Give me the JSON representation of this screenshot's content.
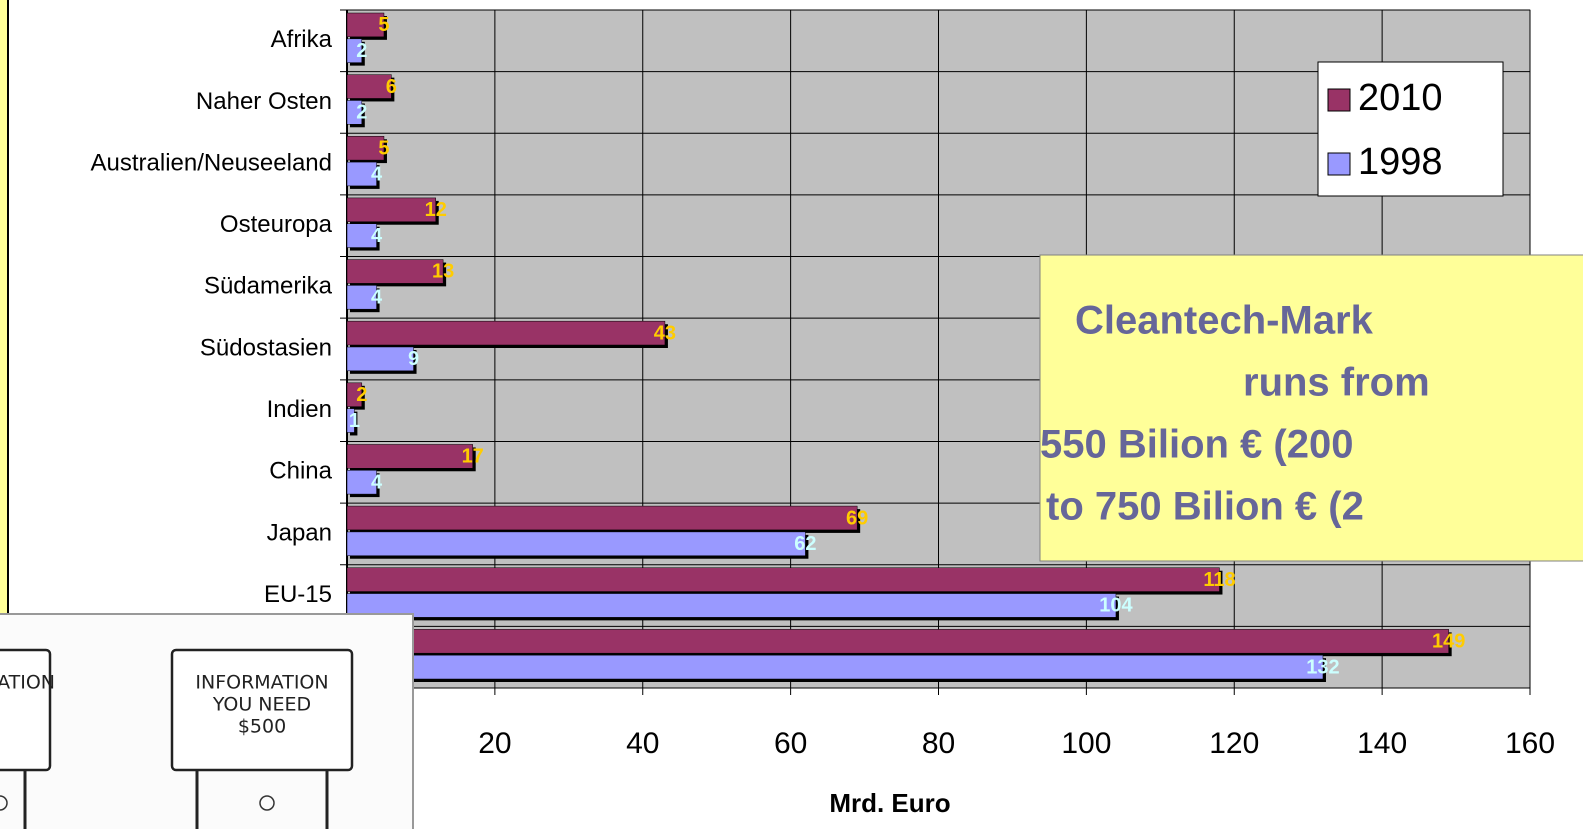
{
  "chart_data": {
    "type": "bar",
    "orientation": "horizontal",
    "x_label": "Mrd. Euro",
    "categories": [
      "Afrika",
      "Naher Osten",
      "Australien/Neuseeland",
      "Osteuropa",
      "Südamerika",
      "Südostasien",
      "Indien",
      "China",
      "Japan",
      "EU-15",
      null
    ],
    "series": [
      {
        "name": "2010",
        "color": "#993366",
        "label_color": "#ffcc00",
        "values": [
          5,
          6,
          5,
          12,
          13,
          43,
          2,
          17,
          69,
          118,
          149
        ]
      },
      {
        "name": "1998",
        "color": "#9999ff",
        "label_color": "#ccffff",
        "values": [
          2,
          2,
          4,
          4,
          4,
          9,
          1,
          4,
          62,
          104,
          132
        ]
      }
    ],
    "xlim": [
      0,
      160
    ],
    "xticks": [
      20,
      40,
      60,
      80,
      100,
      120,
      140,
      160
    ],
    "grid": true,
    "legend": "upper right",
    "annotation": [
      "Cleantech-Mark",
      "runs from",
      "550 Bilion € (200",
      "to 750 Bilion € (2"
    ]
  },
  "inset": {
    "signs": [
      [
        "MATION"
      ],
      [
        "INFORMATION",
        "YOU NEED",
        "$500"
      ]
    ]
  }
}
